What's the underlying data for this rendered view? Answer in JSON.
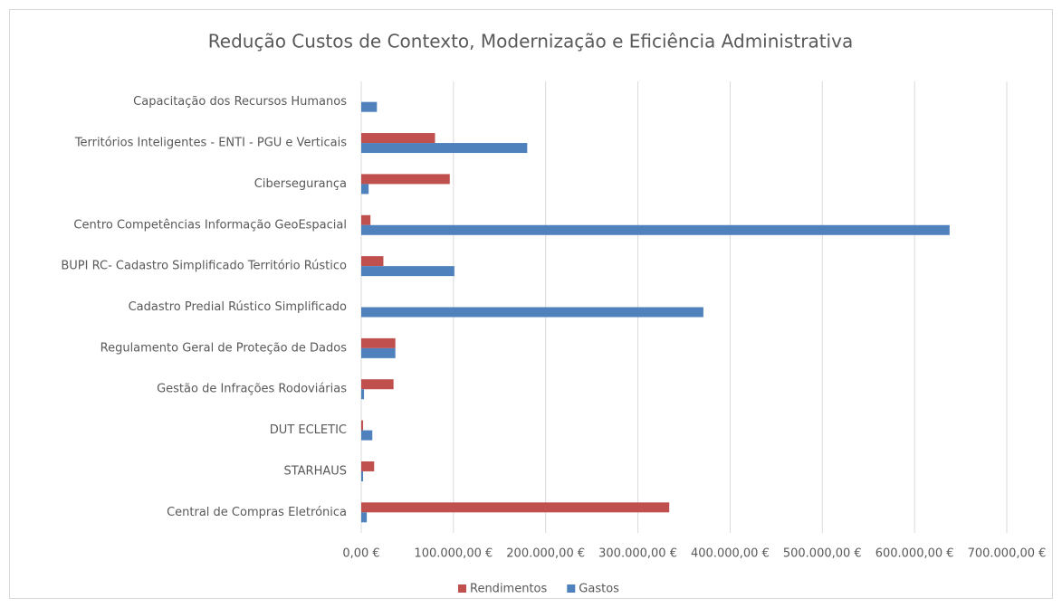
{
  "chart_data": {
    "type": "bar",
    "orientation": "horizontal",
    "title": "Redução Custos de Contexto, Modernização e  Eficiência Administrativa",
    "categories": [
      "Capacitação dos Recursos Humanos",
      "Territórios Inteligentes - ENTI - PGU e Verticais",
      "Cibersegurança",
      "Centro Competências Informação GeoEspacial",
      "BUPI RC- Cadastro Simplificado Território Rústico",
      "Cadastro Predial Rústico Simplificado",
      "Regulamento Geral de Proteção de Dados",
      "Gestão de Infrações Rodoviárias",
      "DUT ECLETIC",
      "STARHAUS",
      "Central de Compras Eletrónica"
    ],
    "series": [
      {
        "name": "Rendimentos",
        "color": "#c0504d",
        "values": [
          0,
          80000,
          96000,
          10000,
          24000,
          0,
          37000,
          35000,
          2000,
          14000,
          334000
        ]
      },
      {
        "name": "Gastos",
        "color": "#4f81bd",
        "values": [
          17000,
          180000,
          8000,
          638000,
          101000,
          371000,
          37000,
          3000,
          12000,
          2000,
          6000
        ]
      }
    ],
    "xlim": [
      0,
      700000
    ],
    "xticks": [
      {
        "value": 0,
        "label": "0,00 €"
      },
      {
        "value": 100000,
        "label": "100.000,00 €"
      },
      {
        "value": 200000,
        "label": "200.000,00 €"
      },
      {
        "value": 300000,
        "label": "300.000,00 €"
      },
      {
        "value": 400000,
        "label": "400.000,00 €"
      },
      {
        "value": 500000,
        "label": "500.000,00 €"
      },
      {
        "value": 600000,
        "label": "600.000,00 €"
      },
      {
        "value": 700000,
        "label": "700.000,00 €"
      }
    ],
    "grid": true,
    "legend": "bottom"
  }
}
